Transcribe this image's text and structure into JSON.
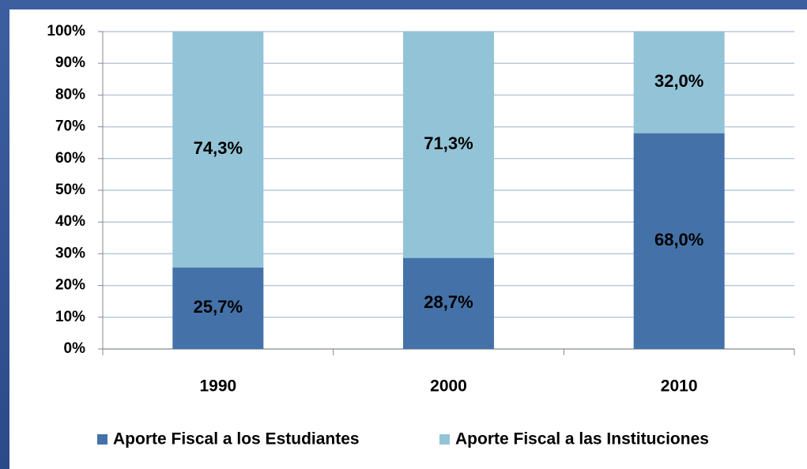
{
  "chart_data": {
    "type": "bar",
    "stacked": true,
    "categories": [
      "1990",
      "2000",
      "2010"
    ],
    "series": [
      {
        "name": "Aporte Fiscal a los Estudiantes",
        "color": "#4472a8",
        "values": [
          25.7,
          28.7,
          68.0
        ],
        "value_labels": [
          "25,7%",
          "28,7%",
          "68,0%"
        ]
      },
      {
        "name": "Aporte Fiscal a las Instituciones",
        "color": "#93c3d7",
        "values": [
          74.3,
          71.3,
          32.0
        ],
        "value_labels": [
          "74,3%",
          "71,3%",
          "32,0%"
        ]
      }
    ],
    "ylim": [
      0,
      100
    ],
    "yticks": [
      {
        "value": 0,
        "label": "0%"
      },
      {
        "value": 10,
        "label": "10%"
      },
      {
        "value": 20,
        "label": "20%"
      },
      {
        "value": 30,
        "label": "30%"
      },
      {
        "value": 40,
        "label": "40%"
      },
      {
        "value": 50,
        "label": "50%"
      },
      {
        "value": 60,
        "label": "60%"
      },
      {
        "value": 70,
        "label": "70%"
      },
      {
        "value": 80,
        "label": "80%"
      },
      {
        "value": 90,
        "label": "90%"
      },
      {
        "value": 100,
        "label": "100%"
      }
    ],
    "grid": true,
    "legend": "bottom"
  }
}
